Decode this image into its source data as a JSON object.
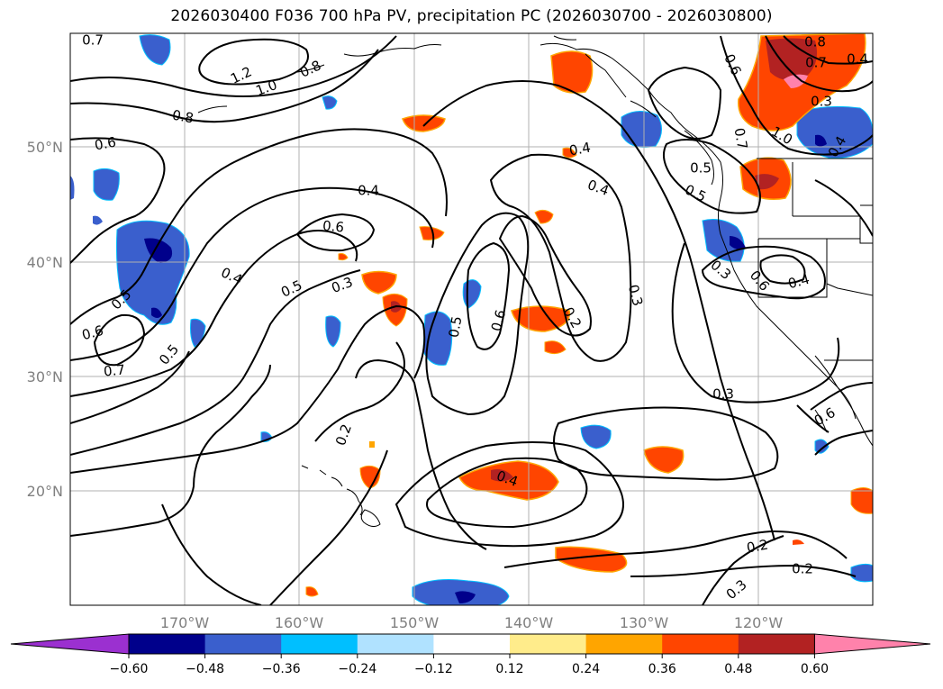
{
  "title": "2026030400 F036 700 hPa PV, precipitation PC (2026030700 - 2026030800)",
  "map": {
    "lat_labels": [
      "50°N",
      "40°N",
      "30°N",
      "20°N"
    ],
    "lon_labels": [
      "170°W",
      "160°W",
      "150°W",
      "140°W",
      "130°W",
      "120°W"
    ]
  },
  "contour_labels": [
    "0.7",
    "1.2",
    "1.0",
    "0.8",
    "0.8",
    "0.6",
    "0.4",
    "0.4",
    "0.6",
    "0.4",
    "0.5",
    "0.3",
    "0.5",
    "0.6",
    "0.2",
    "0.3",
    "0.3",
    "0.2",
    "0.4",
    "0.2",
    "0.2",
    "0.3",
    "0.5",
    "0.6",
    "0.7",
    "0.5",
    "0.5",
    "0.4",
    "0.3",
    "0.6",
    "0.5",
    "0.4",
    "0.6",
    "0.7",
    "1.0",
    "0.8",
    "0.7",
    "0.4",
    "0.3",
    "0.4",
    "0.6"
  ],
  "colorbar": {
    "ticks": [
      "−0.60",
      "−0.48",
      "−0.36",
      "−0.24",
      "−0.12",
      "0.12",
      "0.24",
      "0.36",
      "0.48",
      "0.60"
    ],
    "colors": [
      "#9b30d0",
      "#00008b",
      "#3a5fcd",
      "#00bfff",
      "#b0e2ff",
      "#ffffff",
      "#ffec8b",
      "#ffa500",
      "#ff4500",
      "#b22222",
      "#ff82ab"
    ]
  }
}
